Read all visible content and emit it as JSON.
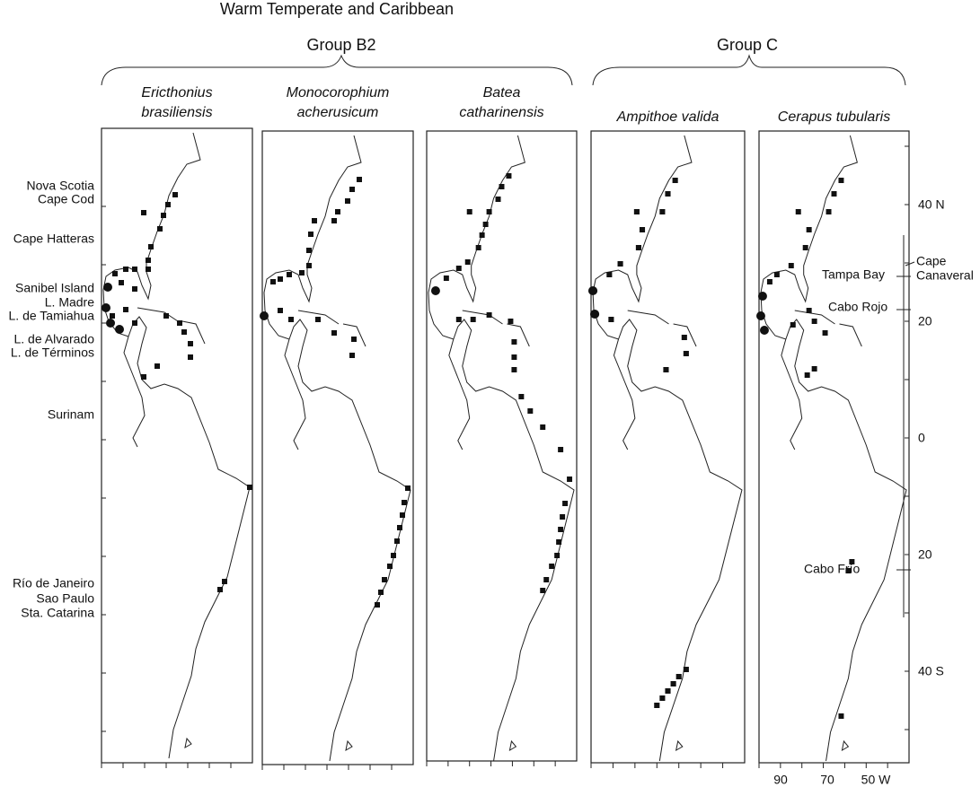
{
  "header": {
    "title": "Warm Temperate and Caribbean"
  },
  "groups": [
    {
      "label": "Group B2"
    },
    {
      "label": "Group C"
    }
  ],
  "panels": [
    {
      "species": [
        "Ericthonius",
        "brasiliensis"
      ]
    },
    {
      "species": [
        "Monocorophium",
        "acherusicum"
      ]
    },
    {
      "species": [
        "Batea",
        "catharinensis"
      ]
    },
    {
      "species": [
        "Ampithoe valida"
      ]
    },
    {
      "species": [
        "Cerapus tubularis"
      ]
    }
  ],
  "places": [
    "Nova Scotia",
    "Cape Cod",
    "Cape Hatteras",
    "Sanibel Island",
    "L. Madre",
    "L. de Tamiahua",
    "L. de Alvarado",
    "L. de Términos",
    "Surinam",
    "Río de Janeiro",
    "Sao Paulo",
    "Sta. Catarina"
  ],
  "latitudes": [
    "40 N",
    "20",
    "0",
    "20",
    "40 S"
  ],
  "longitudes": [
    "90",
    "70",
    "50 W"
  ],
  "annotations": {
    "cape_canaveral": [
      "Cape",
      "Canaveral"
    ],
    "tampa_bay": "Tampa Bay",
    "cabo_rojo": "Cabo Rojo",
    "cabo_frio": "Cabo Frío"
  }
}
